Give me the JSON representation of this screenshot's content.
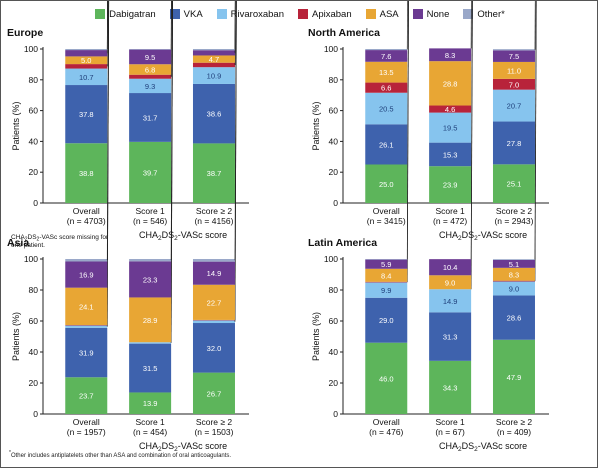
{
  "legend": [
    {
      "name": "Dabigatran",
      "label": "Dabigatran",
      "color": "#5db55b"
    },
    {
      "name": "VKA",
      "label": "VKA",
      "color": "#3e62ad"
    },
    {
      "name": "Rivaroxaban",
      "label": "Rivaroxaban",
      "color": "#86c4ee"
    },
    {
      "name": "Apixaban",
      "label": "Apixaban",
      "color": "#b8233a"
    },
    {
      "name": "ASA",
      "label": "ASA",
      "color": "#e8a634"
    },
    {
      "name": "None",
      "label": "None",
      "color": "#6b3a92"
    },
    {
      "name": "Other",
      "label": "Other*",
      "color": "#9aa8c9"
    }
  ],
  "footnote": "Other includes antiplatelets other than ASA and combination of oral anticoagulants.",
  "footnote_marker": "*",
  "chart_data": [
    {
      "type": "bar",
      "stacked": true,
      "title": "Europe",
      "ylabel": "Patients (%)",
      "xlabel": "CHA2DS2-VASc score",
      "ylim": [
        0,
        100
      ],
      "yticks": [
        0,
        20,
        40,
        60,
        80,
        100
      ],
      "categories": [
        "Overall",
        "Score 1",
        "Score ≥ 2"
      ],
      "category_n": [
        "(n = 4703)",
        "(n = 546)",
        "(n = 4156)"
      ],
      "note": "CHA2DS2-VASc score missing for one patient.",
      "series": [
        {
          "name": "Dabigatran",
          "values": [
            38.8,
            39.7,
            38.7
          ]
        },
        {
          "name": "VKA",
          "values": [
            37.8,
            31.7,
            38.6
          ]
        },
        {
          "name": "Rivaroxaban",
          "values": [
            10.7,
            9.3,
            10.9
          ]
        },
        {
          "name": "Apixaban",
          "values": [
            2.9,
            2.6,
            2.9
          ]
        },
        {
          "name": "ASA",
          "values": [
            5.0,
            6.8,
            4.7
          ]
        },
        {
          "name": "None",
          "values": [
            4.1,
            9.5,
            3.4
          ]
        },
        {
          "name": "Other",
          "values": [
            0.7,
            0.4,
            0.8
          ]
        }
      ]
    },
    {
      "type": "bar",
      "stacked": true,
      "title": "North America",
      "ylabel": "Patients (%)",
      "xlabel": "CHA2DS2-VASc score",
      "ylim": [
        0,
        100
      ],
      "yticks": [
        0,
        20,
        40,
        60,
        80,
        100
      ],
      "categories": [
        "Overall",
        "Score 1",
        "Score ≥ 2"
      ],
      "category_n": [
        "(n = 3415)",
        "(n = 472)",
        "(n = 2943)"
      ],
      "series": [
        {
          "name": "Dabigatran",
          "values": [
            25.0,
            23.9,
            25.1
          ]
        },
        {
          "name": "VKA",
          "values": [
            26.1,
            15.3,
            27.8
          ]
        },
        {
          "name": "Rivaroxaban",
          "values": [
            20.5,
            19.5,
            20.7
          ]
        },
        {
          "name": "Apixaban",
          "values": [
            6.6,
            4.6,
            7.0
          ]
        },
        {
          "name": "ASA",
          "values": [
            13.5,
            28.8,
            11.0
          ]
        },
        {
          "name": "None",
          "values": [
            7.6,
            8.3,
            7.5
          ]
        },
        {
          "name": "Other",
          "values": [
            0.7,
            0.0,
            0.8
          ]
        }
      ]
    },
    {
      "type": "bar",
      "stacked": true,
      "title": "Asia",
      "ylabel": "Patients (%)",
      "xlabel": "CHA2DS2-VASc score",
      "ylim": [
        0,
        100
      ],
      "yticks": [
        0,
        20,
        40,
        60,
        80,
        100
      ],
      "categories": [
        "Overall",
        "Score 1",
        "Score ≥ 2"
      ],
      "category_n": [
        "(n = 1957)",
        "(n = 454)",
        "(n = 1503)"
      ],
      "series": [
        {
          "name": "Dabigatran",
          "values": [
            23.7,
            13.9,
            26.7
          ]
        },
        {
          "name": "VKA",
          "values": [
            31.9,
            31.5,
            32.0
          ]
        },
        {
          "name": "Rivaroxaban",
          "values": [
            1.5,
            0.9,
            1.7
          ]
        },
        {
          "name": "Apixaban",
          "values": [
            0.3,
            0.0,
            0.3
          ]
        },
        {
          "name": "ASA",
          "values": [
            24.1,
            28.9,
            22.7
          ]
        },
        {
          "name": "None",
          "values": [
            16.9,
            23.3,
            14.9
          ]
        },
        {
          "name": "Other",
          "values": [
            1.6,
            1.5,
            1.7
          ]
        }
      ]
    },
    {
      "type": "bar",
      "stacked": true,
      "title": "Latin America",
      "ylabel": "Patients (%)",
      "xlabel": "CHA2DS2-VASc score",
      "ylim": [
        0,
        100
      ],
      "yticks": [
        0,
        20,
        40,
        60,
        80,
        100
      ],
      "categories": [
        "Overall",
        "Score 1",
        "Score ≥ 2"
      ],
      "category_n": [
        "(n = 476)",
        "(n = 67)",
        "(n = 409)"
      ],
      "series": [
        {
          "name": "Dabigatran",
          "values": [
            46.0,
            34.3,
            47.9
          ]
        },
        {
          "name": "VKA",
          "values": [
            29.0,
            31.3,
            28.6
          ]
        },
        {
          "name": "Rivaroxaban",
          "values": [
            9.9,
            14.9,
            9.0
          ]
        },
        {
          "name": "Apixaban",
          "values": [
            0.4,
            0.0,
            0.5
          ]
        },
        {
          "name": "ASA",
          "values": [
            8.4,
            9.0,
            8.3
          ]
        },
        {
          "name": "None",
          "values": [
            5.9,
            10.4,
            5.1
          ]
        },
        {
          "name": "Other",
          "values": [
            0.4,
            0.0,
            0.5
          ]
        }
      ]
    }
  ]
}
